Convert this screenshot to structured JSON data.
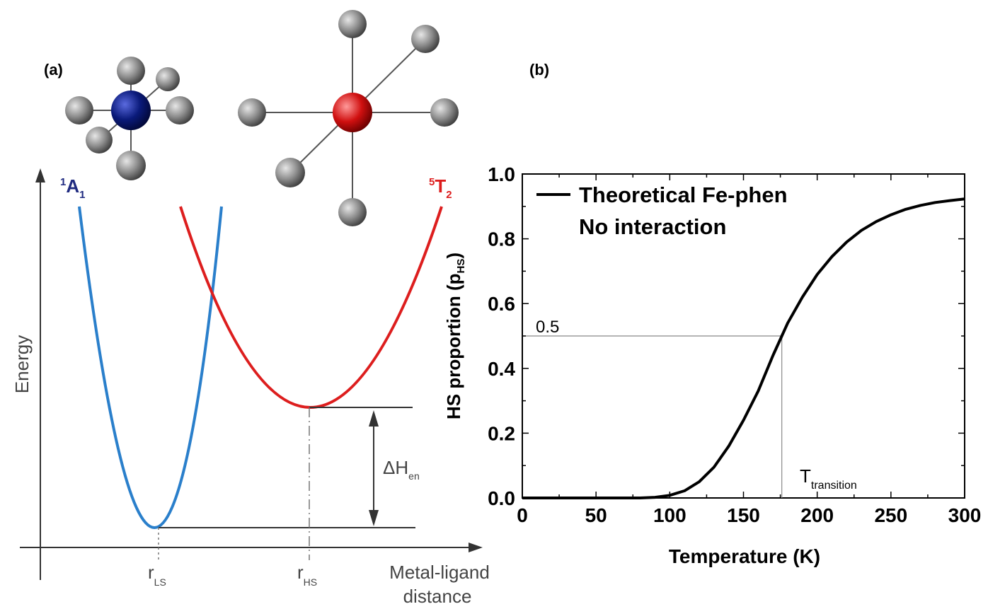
{
  "panel_a": {
    "label": "(a)",
    "ls_state": {
      "sup": "1",
      "main": "A",
      "sub": "1"
    },
    "hs_state": {
      "sup": "5",
      "main": "T",
      "sub": "2"
    },
    "ylabel": "Energy",
    "xlabel_line1": "Metal-ligand",
    "xlabel_line2": "distance",
    "r_ls": {
      "main": "r",
      "sub": "LS"
    },
    "r_hs": {
      "main": "r",
      "sub": "HS"
    },
    "delta_h": {
      "main": "ΔH",
      "sub": "en"
    },
    "colors": {
      "ls": "#2a7fcb",
      "hs": "#dd1e1e",
      "ls_atom": "#0a1a7a",
      "hs_atom": "#d01010",
      "ligand": "#8a8a8a"
    }
  },
  "panel_b": {
    "label": "(b)"
  },
  "chart_data": {
    "type": "line",
    "xlabel": "Temperature (K)",
    "ylabel_main": "HS proportion (p",
    "ylabel_sub": "HS",
    "ylabel_end": ")",
    "xlim": [
      0,
      300
    ],
    "ylim": [
      0,
      1.0
    ],
    "xticks": [
      0,
      50,
      100,
      150,
      200,
      250,
      300
    ],
    "yticks": [
      0.0,
      0.2,
      0.4,
      0.6,
      0.8,
      1.0
    ],
    "xtick_labels": [
      "0",
      "50",
      "100",
      "150",
      "200",
      "250",
      "300"
    ],
    "ytick_labels": [
      "0.0",
      "0.2",
      "0.4",
      "0.6",
      "0.8",
      "1.0"
    ],
    "legend_line1": "Theoretical Fe-phen",
    "legend_line2": "No interaction",
    "legend_placement": "top-left",
    "series": [
      {
        "name": "Theoretical Fe-phen",
        "x": [
          0,
          50,
          80,
          90,
          100,
          110,
          120,
          130,
          140,
          150,
          160,
          170,
          176,
          180,
          190,
          200,
          210,
          220,
          230,
          240,
          250,
          260,
          270,
          280,
          290,
          300
        ],
        "y": [
          0.0,
          0.0,
          0.0,
          0.002,
          0.008,
          0.022,
          0.05,
          0.095,
          0.16,
          0.24,
          0.33,
          0.44,
          0.5,
          0.54,
          0.62,
          0.69,
          0.745,
          0.79,
          0.826,
          0.853,
          0.874,
          0.891,
          0.903,
          0.912,
          0.918,
          0.923
        ]
      }
    ],
    "annotations": {
      "half_label": "0.5",
      "half_value": 0.5,
      "transition_x": 176,
      "transition_main": "T",
      "transition_sub": "transition"
    }
  }
}
